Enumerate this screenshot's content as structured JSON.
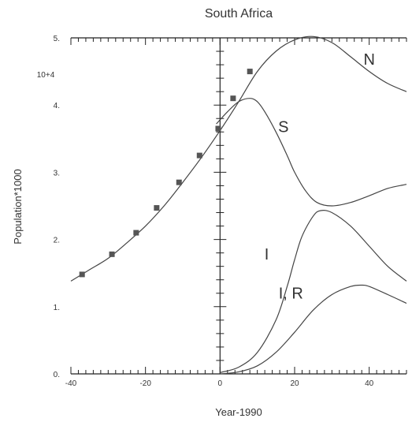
{
  "chart_data": {
    "type": "line",
    "title": "South Africa",
    "xlabel": "Year-1990",
    "ylabel": "Population*1000",
    "y_exponent_label": "10+4",
    "xlim": [
      -40,
      50
    ],
    "ylim": [
      0,
      5
    ],
    "x_tick_labels": [
      "-40",
      "-20",
      "0",
      "20",
      "40"
    ],
    "y_tick_labels": [
      "0.",
      "1.",
      "2.",
      "3.",
      "4.",
      "5."
    ],
    "grid": false,
    "legend": "none",
    "series": [
      {
        "name": "N",
        "x": [
          -40,
          -35,
          -30,
          -25,
          -20,
          -15,
          -10,
          -5,
          0,
          5,
          10,
          15,
          20,
          25,
          30,
          35,
          40,
          45,
          50
        ],
        "values": [
          1.38,
          1.55,
          1.72,
          1.95,
          2.2,
          2.5,
          2.85,
          3.22,
          3.62,
          4.05,
          4.5,
          4.8,
          4.97,
          5.02,
          4.93,
          4.72,
          4.5,
          4.32,
          4.2
        ]
      },
      {
        "name": "S",
        "x": [
          -1,
          2,
          5,
          8,
          10,
          12,
          15,
          18,
          20,
          23,
          26,
          30,
          35,
          40,
          45,
          50
        ],
        "values": [
          3.72,
          3.9,
          4.05,
          4.1,
          4.05,
          3.9,
          3.6,
          3.25,
          3.0,
          2.72,
          2.55,
          2.5,
          2.55,
          2.65,
          2.76,
          2.82
        ]
      },
      {
        "name": "I",
        "x": [
          0,
          5,
          10,
          15,
          18,
          20,
          22,
          25,
          27,
          30,
          35,
          40,
          45,
          50
        ],
        "values": [
          0.02,
          0.1,
          0.32,
          0.8,
          1.3,
          1.7,
          2.05,
          2.35,
          2.43,
          2.4,
          2.2,
          1.9,
          1.6,
          1.38
        ]
      },
      {
        "name": "I, R",
        "x": [
          0,
          5,
          10,
          15,
          20,
          25,
          30,
          35,
          38,
          40,
          45,
          50
        ],
        "values": [
          0.0,
          0.03,
          0.12,
          0.32,
          0.62,
          0.95,
          1.18,
          1.3,
          1.32,
          1.3,
          1.18,
          1.05
        ]
      },
      {
        "name": "data",
        "x": [
          -37,
          -29,
          -22.5,
          -17,
          -11,
          -5.5,
          -0.5,
          3.5,
          8
        ],
        "values": [
          1.48,
          1.78,
          2.1,
          2.47,
          2.85,
          3.25,
          3.65,
          4.1,
          4.5
        ]
      }
    ],
    "curve_labels": [
      "N",
      "S",
      "I",
      "I, R"
    ]
  }
}
